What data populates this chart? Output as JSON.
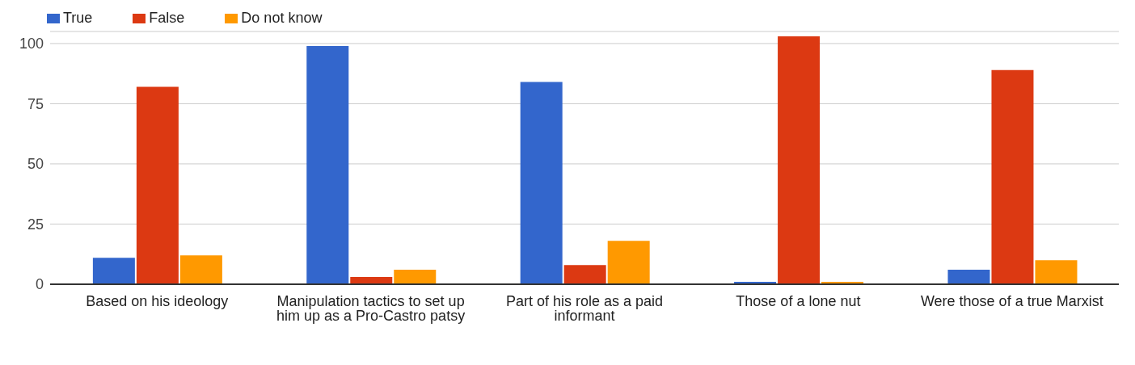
{
  "chart_data": {
    "type": "bar",
    "categories": [
      "Based on his ideology",
      "Manipulation tactics to set up him up as a Pro-Castro patsy",
      "Part of his role as a paid informant",
      "Those of a lone nut",
      "Were those of a true Marxist"
    ],
    "series": [
      {
        "name": "True",
        "color": "#3366cc",
        "values": [
          11,
          99,
          84,
          1,
          6
        ]
      },
      {
        "name": "False",
        "color": "#dc3912",
        "values": [
          82,
          3,
          8,
          103,
          89
        ]
      },
      {
        "name": "Do not know",
        "color": "#ff9900",
        "values": [
          12,
          6,
          18,
          1,
          10
        ]
      }
    ],
    "ylim": [
      0,
      105
    ],
    "yticks": [
      0,
      25,
      50,
      75,
      100
    ],
    "grid": "y",
    "legend": "top left"
  }
}
